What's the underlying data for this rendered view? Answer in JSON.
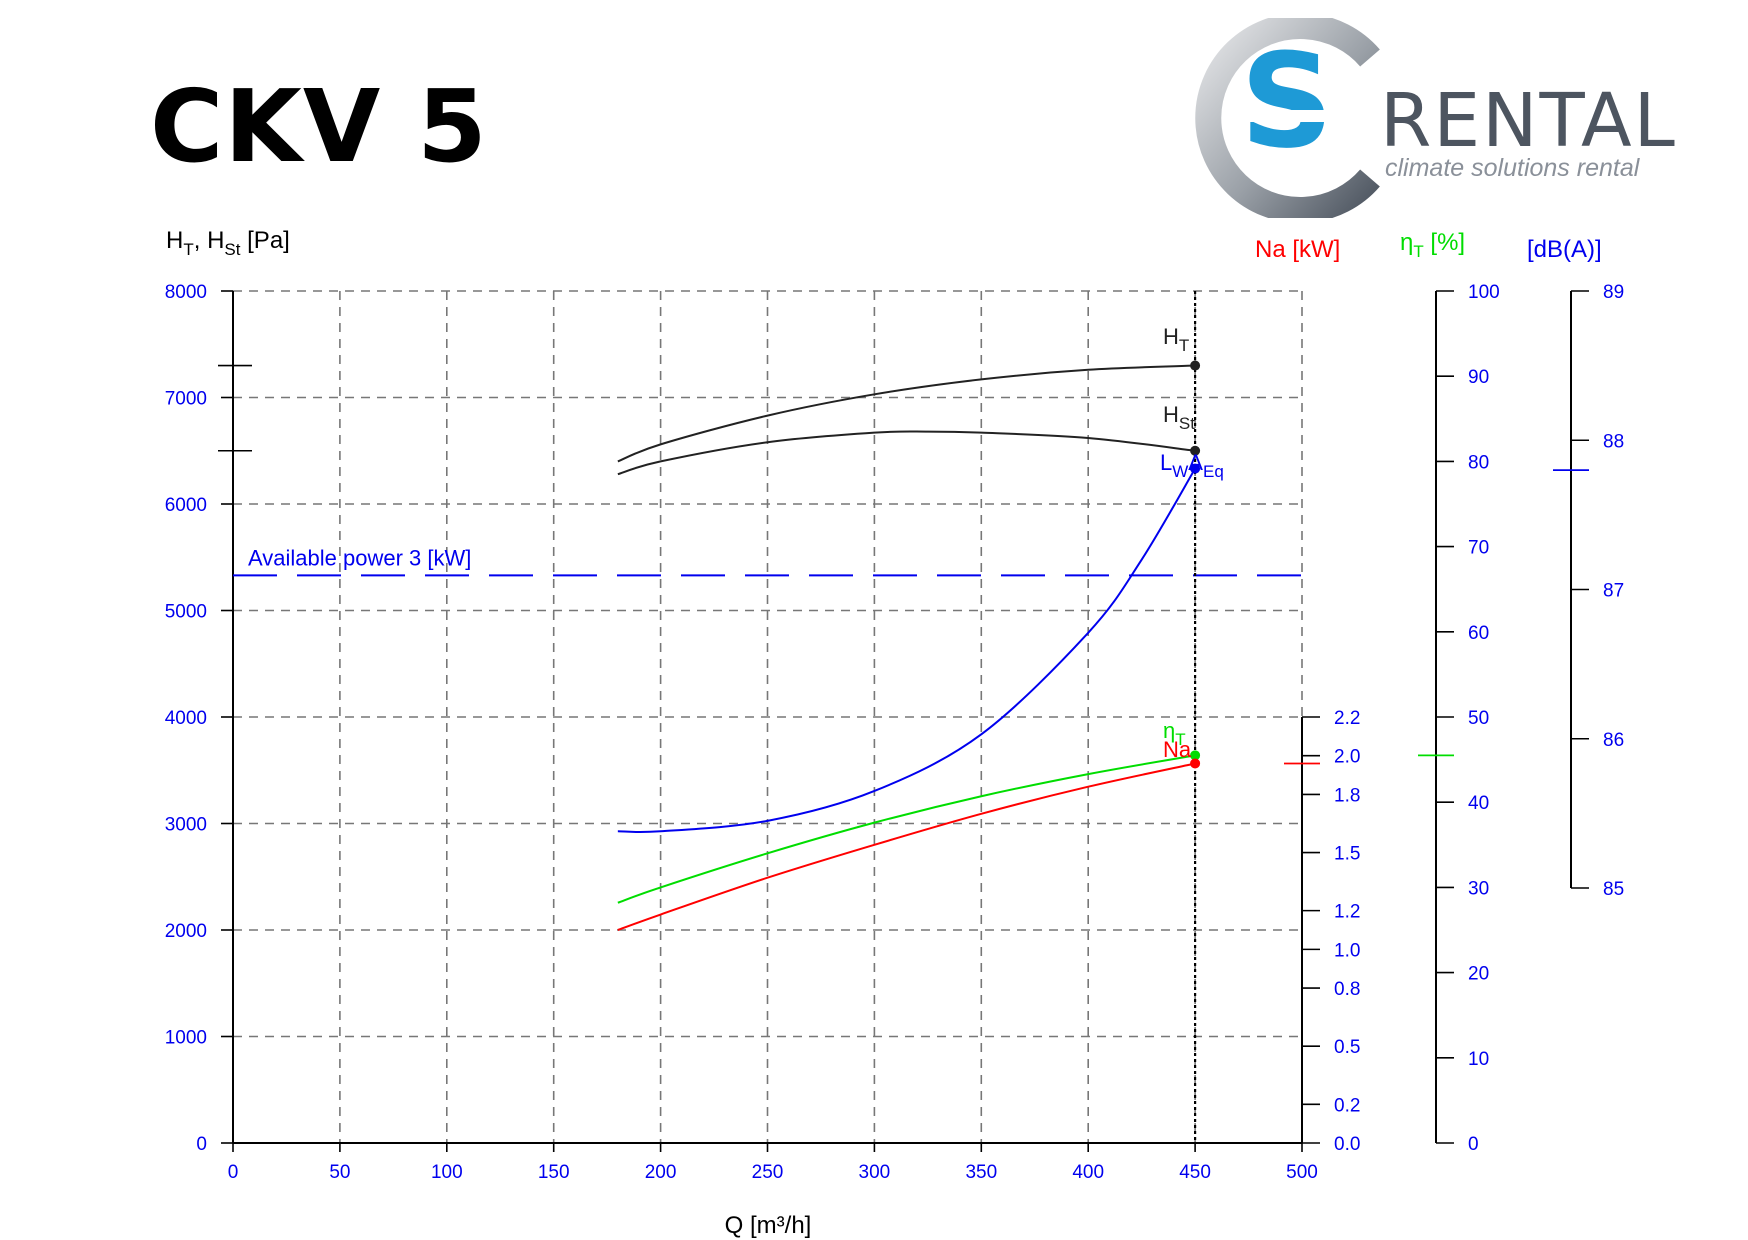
{
  "header": {
    "title": "CKV 5"
  },
  "logo": {
    "name": "cs-rental-logo",
    "letters": "S",
    "word": "RENTAL",
    "tagline": "climate solutions rental",
    "colors": {
      "arc": "#4d5560",
      "accent": "#1e9ad6",
      "text": "#4d5560"
    }
  },
  "chart_data": {
    "type": "line",
    "xlabel": "Q [m³/h]",
    "x_ticks": [
      "0",
      "50",
      "100",
      "150",
      "200",
      "250",
      "300",
      "350",
      "400",
      "450",
      "500"
    ],
    "xlim": [
      0,
      500
    ],
    "grid": true,
    "operating_point": {
      "x": 450
    },
    "axes": {
      "left": {
        "label": "HT, HSt [Pa]",
        "label_main": "H",
        "label_sub1": "T",
        "label_sep": ", H",
        "label_sub2": "St",
        "label_unit": " [Pa]",
        "ylim": [
          0,
          8000
        ],
        "ticks": [
          "0",
          "1000",
          "2000",
          "3000",
          "4000",
          "5000",
          "6000",
          "7000",
          "8000"
        ],
        "marks": [
          7300,
          6500
        ]
      },
      "power": {
        "label": "Na [kW]",
        "ylim": [
          0,
          2.2
        ],
        "range_in_left_units": [
          0,
          4000
        ],
        "ticks": [
          {
            "v": 0.0,
            "label": "0.0"
          },
          {
            "v": 0.2,
            "label": "0.2"
          },
          {
            "v": 0.5,
            "label": "0.5"
          },
          {
            "v": 0.8,
            "label": "0.8"
          },
          {
            "v": 1.0,
            "label": "1.0"
          },
          {
            "v": 1.2,
            "label": "1.2"
          },
          {
            "v": 1.5,
            "label": "1.5"
          },
          {
            "v": 1.8,
            "label": "1.8"
          },
          {
            "v": 2.0,
            "label": "2.0"
          },
          {
            "v": 2.2,
            "label": "2.2"
          }
        ],
        "mark": 1.96,
        "color": "#ff0000"
      },
      "efficiency": {
        "label": "ηT [%]",
        "label_main": "η",
        "label_sub": "T",
        "label_unit": " [%]",
        "ylim": [
          0,
          100
        ],
        "ticks": [
          "0",
          "10",
          "20",
          "30",
          "40",
          "50",
          "60",
          "70",
          "80",
          "90",
          "100"
        ],
        "mark": 45.5,
        "color": "#00dd00"
      },
      "sound": {
        "label": "[dB(A)]",
        "ylim": [
          85,
          89
        ],
        "ticks": [
          "85",
          "86",
          "87",
          "88",
          "89"
        ],
        "mark": 87.8,
        "color": "#0000ee"
      }
    },
    "series": [
      {
        "name": "HT",
        "label_main": "H",
        "label_sub": "T",
        "axis": "left",
        "color": "#222222",
        "x": [
          180,
          200,
          250,
          300,
          350,
          400,
          450
        ],
        "y": [
          6400,
          6560,
          6830,
          7030,
          7170,
          7260,
          7300
        ]
      },
      {
        "name": "HSt",
        "label_main": "H",
        "label_sub": "St",
        "axis": "left",
        "color": "#222222",
        "x": [
          180,
          200,
          250,
          300,
          325,
          350,
          400,
          450
        ],
        "y": [
          6280,
          6400,
          6580,
          6670,
          6680,
          6670,
          6620,
          6500
        ]
      },
      {
        "name": "LWAEq",
        "label_main": "L",
        "label_sub1": "W",
        "label_mid": "A",
        "label_sub2": "Eq",
        "axis": "sound",
        "color": "#0000ee",
        "x": [
          180,
          200,
          250,
          300,
          350,
          400,
          425,
          450
        ],
        "y": [
          85.38,
          85.38,
          85.45,
          85.65,
          86.03,
          86.71,
          87.2,
          87.81
        ]
      },
      {
        "name": "ηT",
        "label_main": "η",
        "label_sub": "T",
        "axis": "efficiency",
        "color": "#00dd00",
        "x": [
          180,
          200,
          250,
          300,
          350,
          400,
          450
        ],
        "y": [
          28.2,
          30,
          34,
          37.6,
          40.7,
          43.3,
          45.5
        ]
      },
      {
        "name": "Na",
        "axis": "power",
        "color": "#ff0000",
        "x": [
          180,
          200,
          250,
          300,
          350,
          400,
          450
        ],
        "y": [
          1.1,
          1.18,
          1.37,
          1.54,
          1.7,
          1.84,
          1.96
        ]
      }
    ],
    "annotations": [
      {
        "text": "Available power 3 [kW]",
        "axis": "left",
        "y": 5330,
        "style": "dashed",
        "color": "#0000ee"
      }
    ]
  }
}
